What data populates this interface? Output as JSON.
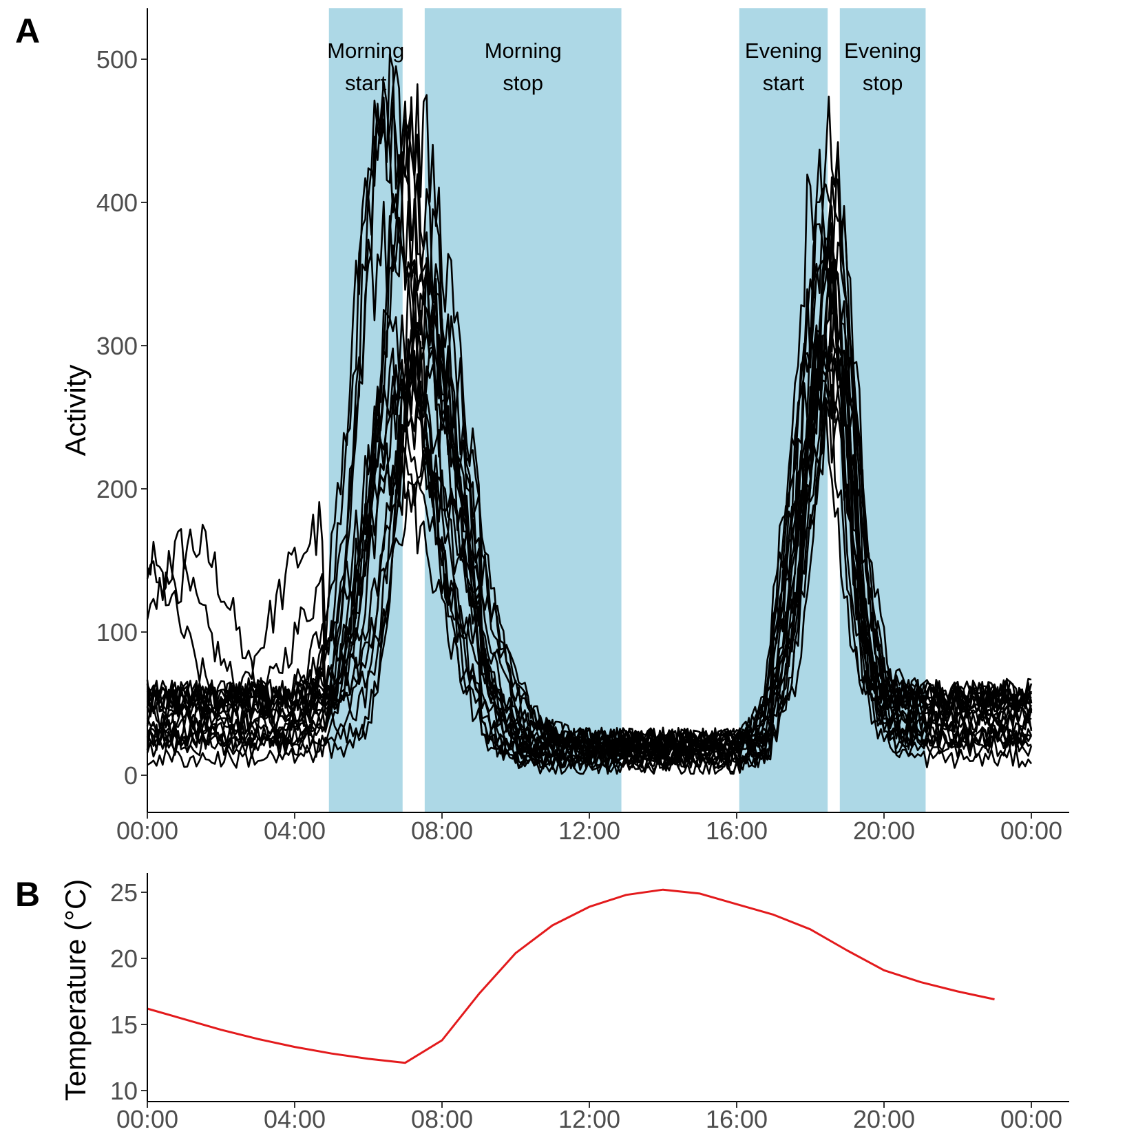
{
  "panels": [
    {
      "letter": "A",
      "ylabel": "Activity",
      "xticks": [
        "00:00",
        "04:00",
        "08:00",
        "12:00",
        "16:00",
        "20:00",
        "00:00"
      ],
      "yticks": [
        "0",
        "100",
        "200",
        "300",
        "400",
        "500"
      ]
    },
    {
      "letter": "B",
      "ylabel": "Temperature (°C)",
      "xticks": [
        "00:00",
        "04:00",
        "08:00",
        "12:00",
        "16:00",
        "20:00",
        "00:00"
      ],
      "yticks": [
        "10",
        "15",
        "20",
        "25"
      ]
    }
  ],
  "colors": {
    "band": "#ADD8E6",
    "activity_line": "#000000",
    "temperature_line": "#E31A1C"
  },
  "chart_data": [
    {
      "type": "line",
      "panel": "A",
      "xlabel": "",
      "ylabel": "Activity",
      "xlim": [
        0,
        24
      ],
      "ylim": [
        -25,
        525
      ],
      "x_unit": "hours of day",
      "bands": [
        {
          "label_line1": "Morning",
          "label_line2": "start",
          "from": 4.93,
          "to": 6.93
        },
        {
          "label_line1": "Morning",
          "label_line2": "stop",
          "from": 7.53,
          "to": 12.87
        },
        {
          "label_line1": "Evening",
          "label_line2": "start",
          "from": 16.07,
          "to": 18.47
        },
        {
          "label_line1": "Evening",
          "label_line2": "stop",
          "from": 18.8,
          "to": 21.13
        }
      ],
      "series_count": 22,
      "line_profile": {
        "note": "approximate shape of the individual activity curves",
        "baseline_range": [
          10,
          60
        ],
        "morning_peak_time": 7.0,
        "morning_peak_range": [
          150,
          460
        ],
        "evening_peak_time": 18.6,
        "evening_peak_range": [
          180,
          385
        ]
      },
      "grid": false
    },
    {
      "type": "line",
      "panel": "B",
      "xlabel": "",
      "ylabel": "Temperature (°C)",
      "xlim": [
        0,
        24
      ],
      "ylim": [
        9.3,
        26.8
      ],
      "x": [
        0,
        1,
        2,
        3,
        4,
        5,
        6,
        7,
        8,
        9,
        10,
        11,
        12,
        13,
        14,
        15,
        16,
        17,
        18,
        19,
        20,
        21,
        22,
        23
      ],
      "y": [
        16.2,
        15.4,
        14.6,
        13.9,
        13.3,
        12.8,
        12.4,
        12.1,
        13.8,
        17.3,
        20.4,
        22.5,
        23.9,
        24.8,
        25.2,
        24.9,
        24.1,
        23.3,
        22.2,
        20.6,
        19.1,
        18.2,
        17.5,
        16.9
      ],
      "grid": false
    }
  ]
}
